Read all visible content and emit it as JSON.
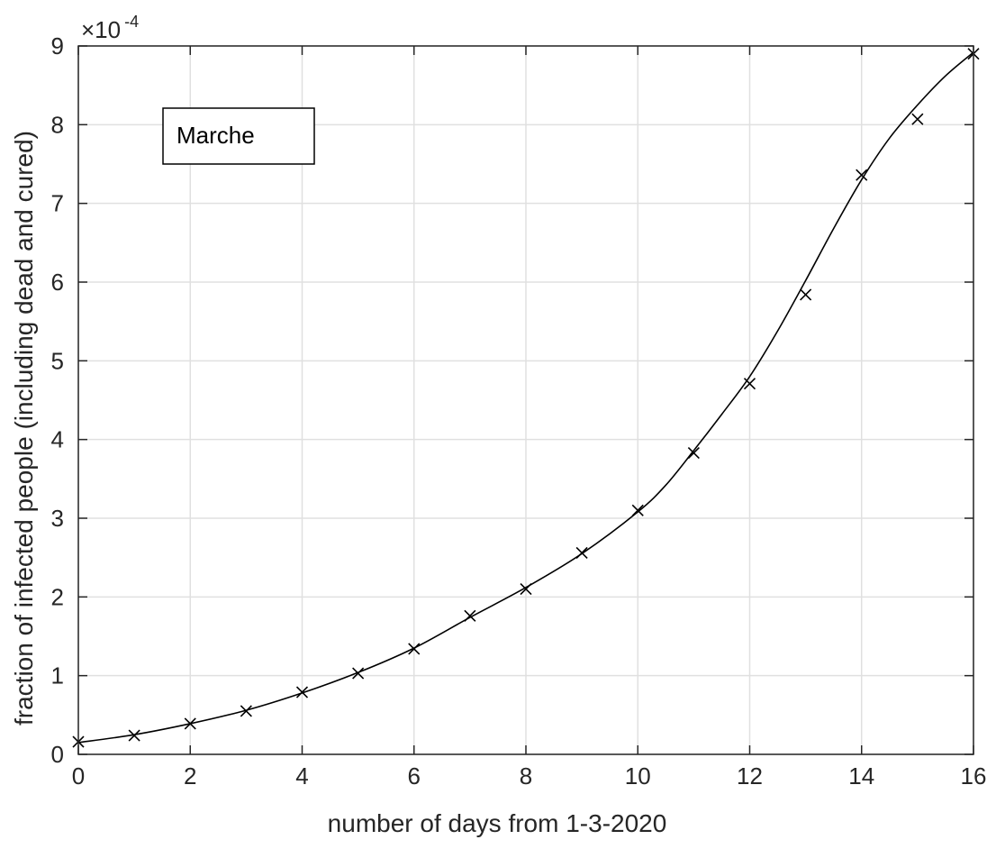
{
  "chart_data": {
    "type": "line",
    "xlabel": "number of days from 1-3-2020",
    "ylabel": "fraction of infected people (including dead and cured)",
    "xlim": [
      0,
      16
    ],
    "ylim": [
      0,
      9
    ],
    "y_scale_exponent_label": {
      "base": "×10",
      "exponent": "-4"
    },
    "x_ticks": [
      0,
      2,
      4,
      6,
      8,
      10,
      12,
      14,
      16
    ],
    "y_ticks": [
      0,
      1,
      2,
      3,
      4,
      5,
      6,
      7,
      8,
      9
    ],
    "grid": true,
    "legend_placement": "top-left",
    "series": [
      {
        "name": "Marche",
        "kind": "markers",
        "marker": "x",
        "x": [
          0,
          1,
          2,
          3,
          4,
          5,
          6,
          7,
          8,
          9,
          10,
          11,
          12,
          13,
          14,
          15,
          16
        ],
        "y": [
          0.16,
          0.24,
          0.39,
          0.55,
          0.79,
          1.03,
          1.34,
          1.76,
          2.1,
          2.56,
          3.1,
          3.83,
          4.71,
          5.84,
          7.36,
          8.07,
          8.9
        ]
      },
      {
        "kind": "line",
        "x": [
          0,
          1,
          2,
          3,
          4,
          5,
          6,
          7,
          8,
          9,
          10,
          10.5,
          11,
          11.5,
          12,
          12.5,
          13,
          13.5,
          14,
          14.5,
          15,
          15.5,
          16
        ],
        "y": [
          0.15,
          0.25,
          0.39,
          0.56,
          0.78,
          1.04,
          1.35,
          1.74,
          2.12,
          2.55,
          3.08,
          3.42,
          3.86,
          4.32,
          4.8,
          5.38,
          6.02,
          6.68,
          7.3,
          7.83,
          8.25,
          8.62,
          8.92
        ]
      }
    ],
    "colors": {
      "line": "#000000",
      "axis": "#262626",
      "grid": "#e0e0e0"
    }
  }
}
